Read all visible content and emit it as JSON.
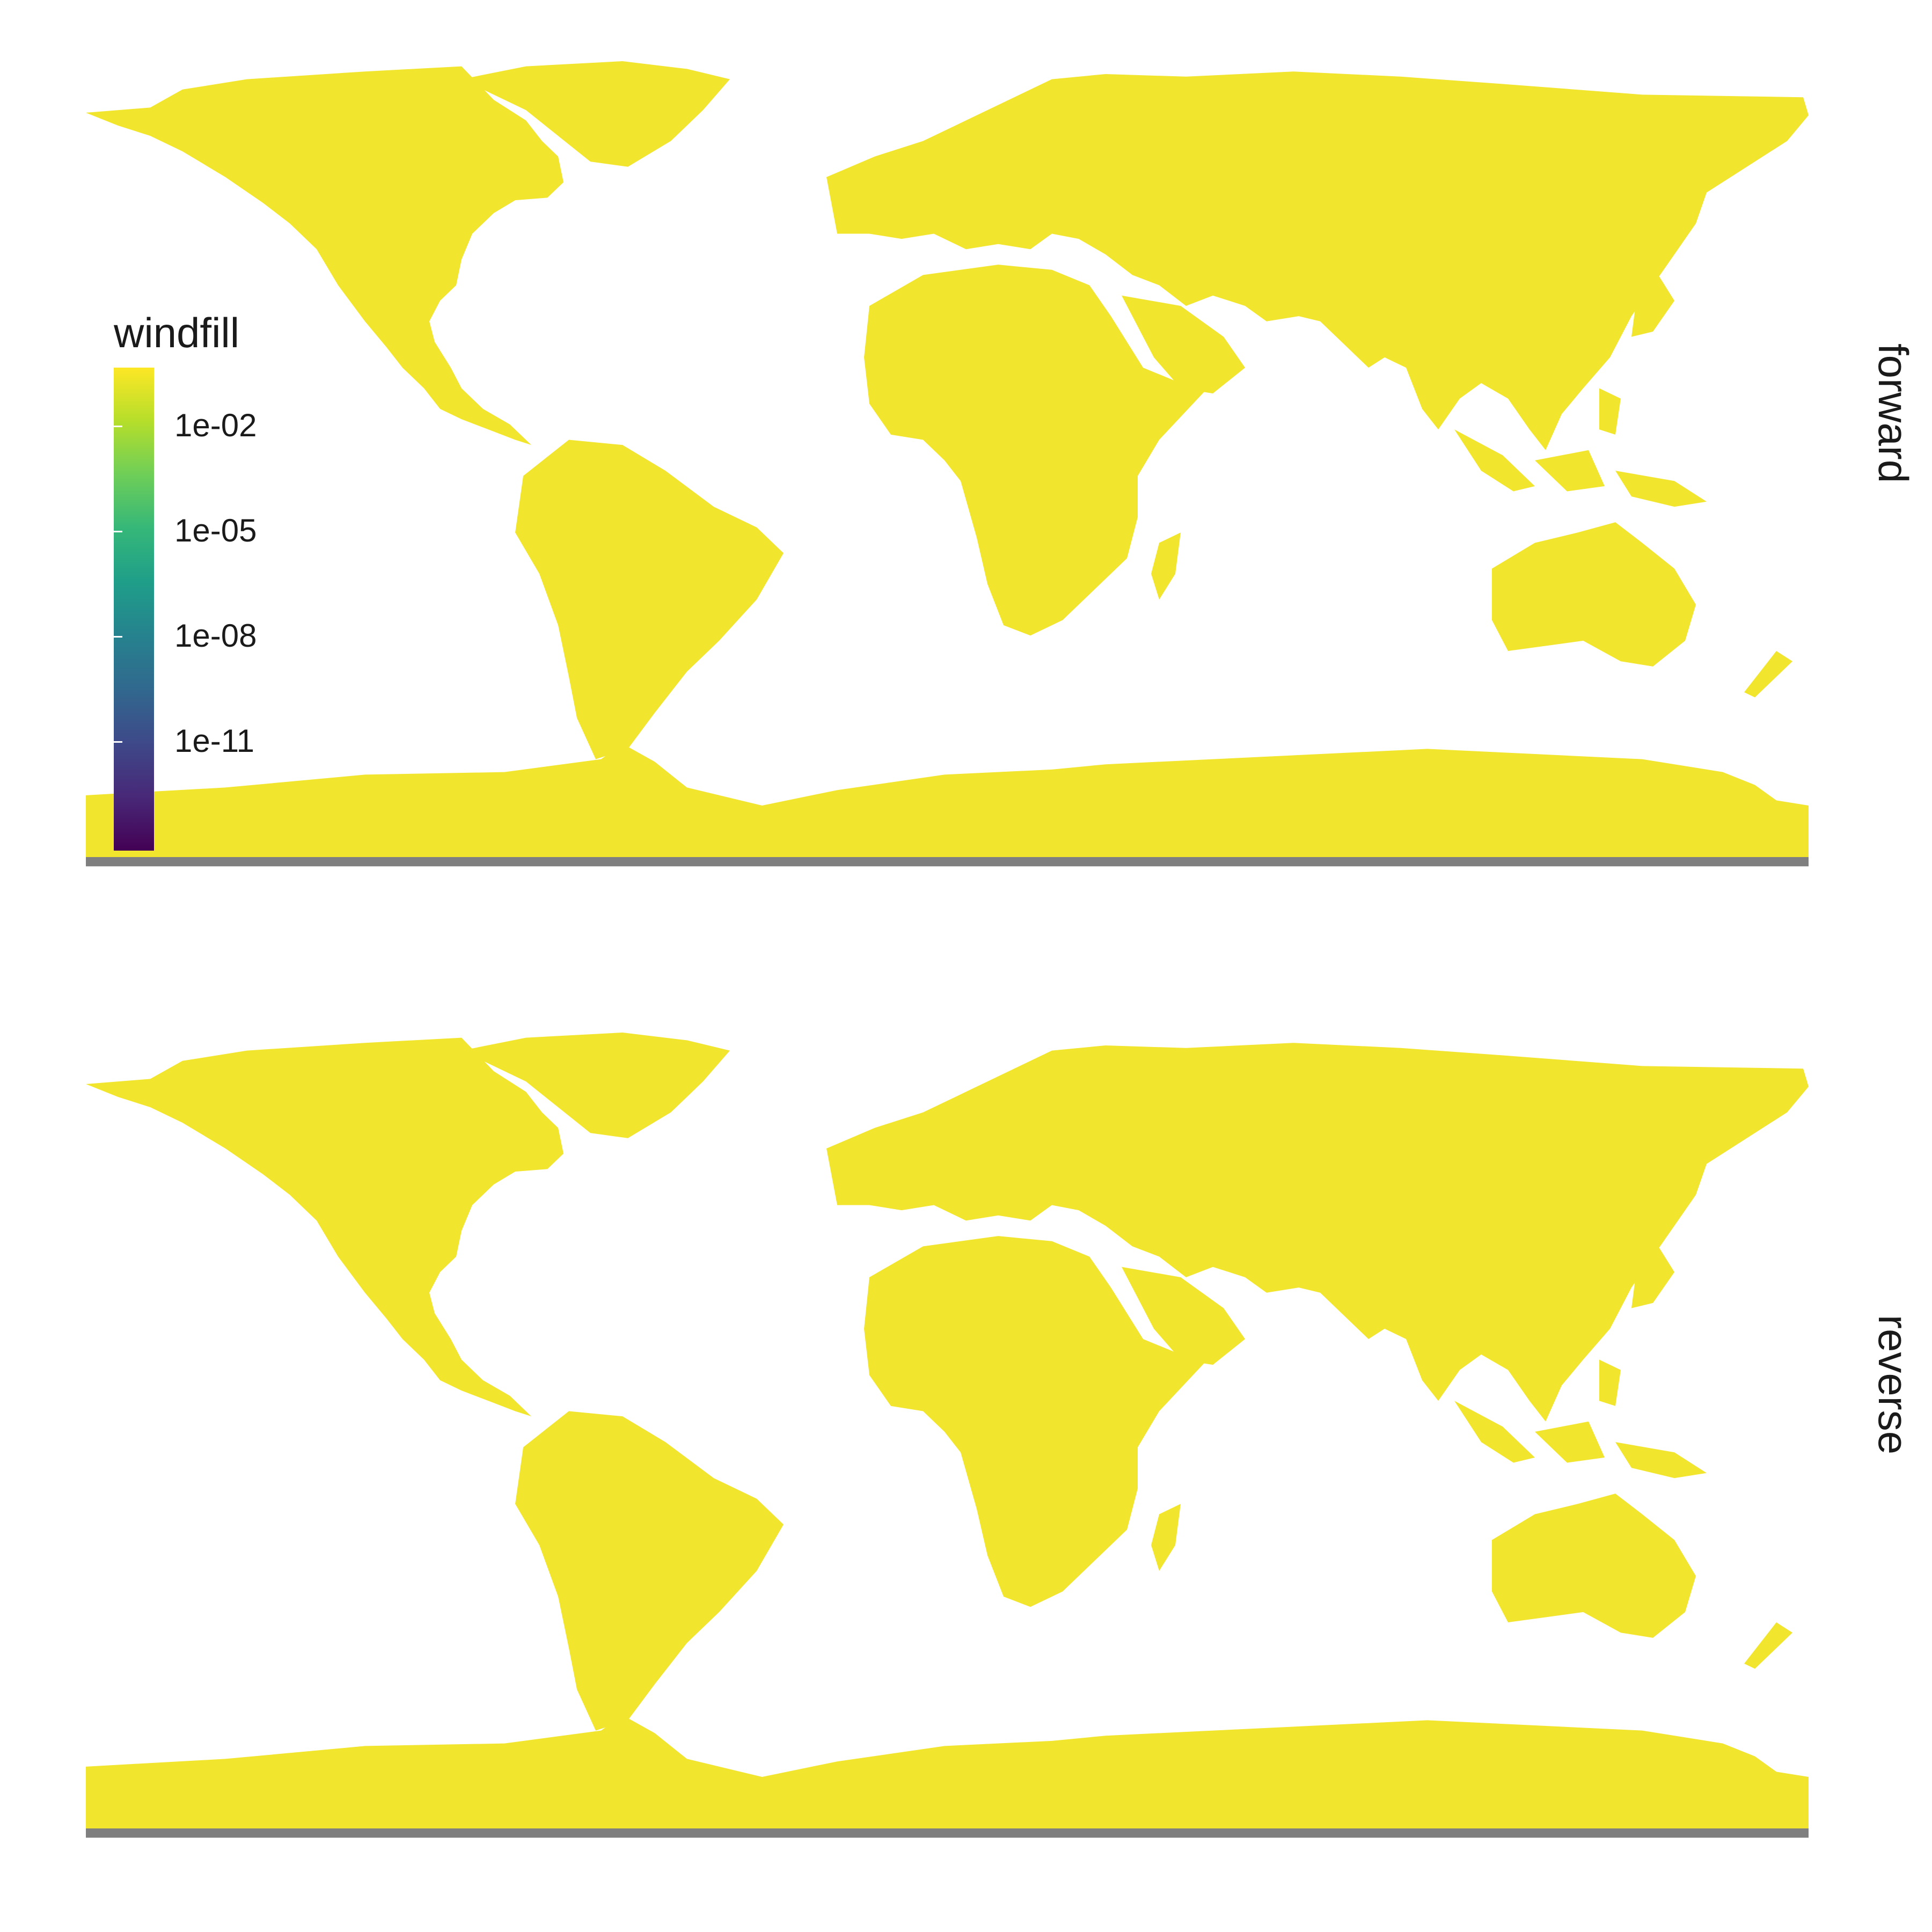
{
  "map": {
    "panels": [
      {
        "key": "forward",
        "label": "forward"
      },
      {
        "key": "reverse",
        "label": "reverse"
      }
    ],
    "land_color": "#f2e52e",
    "edge_color": "#7f7f7f",
    "ocean_color": "#ffffff"
  },
  "legend": {
    "title": "windfill",
    "scale": "log",
    "ticks": [
      "1e-02",
      "1e-05",
      "1e-08",
      "1e-11"
    ],
    "colors": [
      "#fde725",
      "#b5de2b",
      "#6ece58",
      "#35b779",
      "#1f9e89",
      "#26828e",
      "#31688e",
      "#3e4989",
      "#482878",
      "#440154"
    ]
  }
}
